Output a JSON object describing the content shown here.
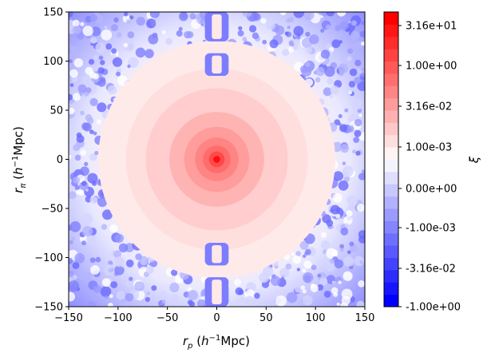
{
  "chart_data": {
    "type": "heatmap",
    "title": "",
    "xlabel": "r_p (h^-1Mpc)",
    "ylabel": "r_π (h^-1Mpc)",
    "xlim": [
      -150,
      150
    ],
    "ylim": [
      -150,
      150
    ],
    "x_ticks": [
      "−150",
      "−100",
      "−50",
      "0",
      "50",
      "100",
      "150"
    ],
    "y_ticks": [
      "150",
      "100",
      "50",
      "0",
      "−50",
      "−100",
      "−150"
    ],
    "grid": false,
    "colorbar": {
      "label": "ξ",
      "colormap": "bwr",
      "tick_labels": [
        "3.16e+01",
        "1.00e+00",
        "3.16e-02",
        "1.00e-03",
        "0.00e+00",
        "-1.00e-03",
        "-3.16e-02",
        "-1.00e+00"
      ],
      "n_levels": 24,
      "low_color": "#0000ff",
      "mid_color": "#ffffff",
      "high_color": "#ff0000"
    },
    "features": {
      "central_peak_xi": 31.6,
      "outer_region_xi": -0.001
    }
  }
}
